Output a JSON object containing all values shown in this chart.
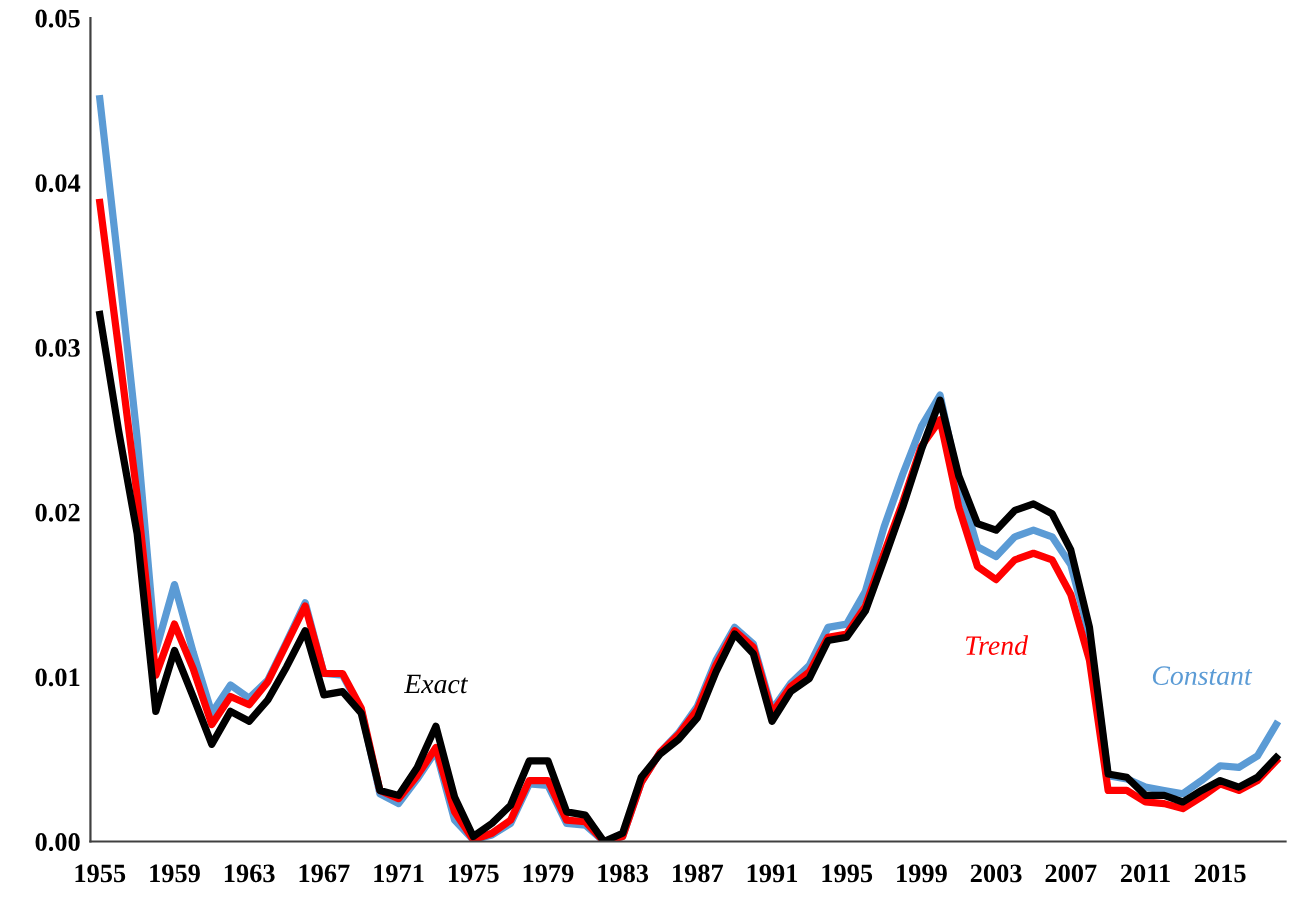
{
  "chart_data": {
    "type": "line",
    "x": [
      1955,
      1956,
      1957,
      1958,
      1959,
      1960,
      1961,
      1962,
      1963,
      1964,
      1965,
      1966,
      1967,
      1968,
      1969,
      1970,
      1971,
      1972,
      1973,
      1974,
      1975,
      1976,
      1977,
      1978,
      1979,
      1980,
      1981,
      1982,
      1983,
      1984,
      1985,
      1986,
      1987,
      1988,
      1989,
      1990,
      1991,
      1992,
      1993,
      1994,
      1995,
      1996,
      1997,
      1998,
      1999,
      2000,
      2001,
      2002,
      2003,
      2004,
      2005,
      2006,
      2007,
      2008,
      2009,
      2010,
      2011,
      2012,
      2013,
      2014,
      2015,
      2016,
      2017,
      2018
    ],
    "series": [
      {
        "name": "Constant",
        "color": "#5b9bd5",
        "values": [
          0.0451,
          0.035,
          0.0245,
          0.0116,
          0.0156,
          0.0115,
          0.0078,
          0.0095,
          0.0087,
          0.0098,
          0.0121,
          0.0145,
          0.0102,
          0.0101,
          0.008,
          0.0029,
          0.0023,
          0.0038,
          0.0055,
          0.0013,
          0.0001,
          0.0004,
          0.0011,
          0.0035,
          0.0034,
          0.0011,
          0.001,
          0.0,
          0.0003,
          0.0036,
          0.0054,
          0.0066,
          0.0082,
          0.011,
          0.013,
          0.012,
          0.008,
          0.0096,
          0.0107,
          0.013,
          0.0132,
          0.0152,
          0.0191,
          0.0223,
          0.0252,
          0.0271,
          0.0218,
          0.0179,
          0.0173,
          0.0185,
          0.0189,
          0.0185,
          0.0168,
          0.0125,
          0.004,
          0.0038,
          0.0033,
          0.0031,
          0.0029,
          0.0037,
          0.0046,
          0.0045,
          0.0052,
          0.0071
        ]
      },
      {
        "name": "Trend",
        "color": "#ff0000",
        "values": [
          0.0388,
          0.03,
          0.021,
          0.0101,
          0.0132,
          0.0105,
          0.0071,
          0.0088,
          0.0083,
          0.0097,
          0.012,
          0.0143,
          0.0102,
          0.0102,
          0.0081,
          0.0031,
          0.0026,
          0.004,
          0.0057,
          0.0018,
          0.0001,
          0.0005,
          0.0013,
          0.0037,
          0.0037,
          0.0013,
          0.0012,
          0.0,
          0.0003,
          0.0036,
          0.0054,
          0.0065,
          0.008,
          0.0107,
          0.0128,
          0.0118,
          0.0078,
          0.0094,
          0.0103,
          0.0124,
          0.0126,
          0.0143,
          0.0175,
          0.0206,
          0.024,
          0.0256,
          0.0203,
          0.0167,
          0.0159,
          0.0171,
          0.0175,
          0.0171,
          0.015,
          0.011,
          0.0031,
          0.0031,
          0.0024,
          0.0023,
          0.002,
          0.0027,
          0.0035,
          0.0031,
          0.0037,
          0.0049
        ]
      },
      {
        "name": "Exact",
        "color": "#000000",
        "values": [
          0.032,
          0.025,
          0.0187,
          0.0079,
          0.0116,
          0.0088,
          0.0059,
          0.0079,
          0.0073,
          0.0086,
          0.0106,
          0.0128,
          0.0089,
          0.0091,
          0.0078,
          0.0031,
          0.0028,
          0.0045,
          0.007,
          0.0027,
          0.0003,
          0.0011,
          0.0022,
          0.0049,
          0.0049,
          0.0018,
          0.0016,
          0.0,
          0.0005,
          0.0039,
          0.0053,
          0.0062,
          0.0075,
          0.0103,
          0.0126,
          0.0114,
          0.0073,
          0.0091,
          0.0099,
          0.0122,
          0.0124,
          0.014,
          0.0171,
          0.0203,
          0.0238,
          0.0268,
          0.0222,
          0.0193,
          0.0189,
          0.0201,
          0.0205,
          0.0199,
          0.0177,
          0.013,
          0.0041,
          0.0039,
          0.0028,
          0.0028,
          0.0024,
          0.0031,
          0.0037,
          0.0033,
          0.0039,
          0.0051
        ]
      }
    ],
    "xlim": [
      1954.5,
      2018.5
    ],
    "xticks": [
      1955,
      1959,
      1963,
      1967,
      1971,
      1975,
      1979,
      1983,
      1987,
      1991,
      1995,
      1999,
      2003,
      2007,
      2011,
      2015
    ],
    "ylim": [
      0,
      0.05
    ],
    "yticks": [
      {
        "value": 0,
        "label": "0.00"
      },
      {
        "value": 0.01,
        "label": "0.01"
      },
      {
        "value": 0.02,
        "label": "0.02"
      },
      {
        "value": 0.03,
        "label": "0.03"
      },
      {
        "value": 0.04,
        "label": "0.04"
      },
      {
        "value": 0.05,
        "label": "0.05"
      }
    ],
    "grid": false,
    "legend": false,
    "marker": "none",
    "line_style": "solid"
  }
}
